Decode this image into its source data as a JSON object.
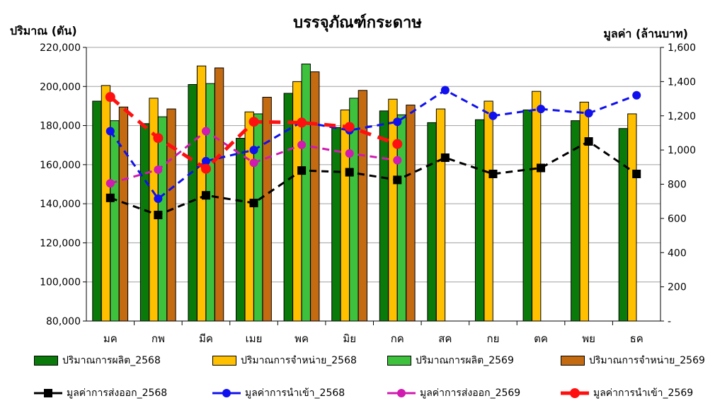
{
  "chart_data": {
    "type": "bar",
    "title": "บรรจุภัณฑ์กระดาษ",
    "ylabel": "ปริมาณ (ตัน)",
    "y2label": "มูลค่า (ล้านบาท)",
    "categories": [
      "มค",
      "กพ",
      "มีค",
      "เมย",
      "พค",
      "มิย",
      "กค",
      "สค",
      "กย",
      "ตค",
      "พย",
      "ธค"
    ],
    "ylim": [
      80000,
      220000
    ],
    "yticks": [
      "80,000",
      "100,000",
      "120,000",
      "140,000",
      "160,000",
      "180,000",
      "200,000",
      "220,000"
    ],
    "y2lim": [
      0,
      1600
    ],
    "y2ticks": [
      "-",
      "200",
      "400",
      "600",
      "800",
      "1,000",
      "1,200",
      "1,400",
      "1,600"
    ],
    "grid": true,
    "legend_position": "bottom",
    "bar_series": [
      {
        "name": "ปริมาณการผลิต_2568",
        "color": "#0a7a0a",
        "values": [
          192500,
          181000,
          201000,
          173500,
          196500,
          179000,
          187500,
          181500,
          183000,
          188000,
          182500,
          178500
        ]
      },
      {
        "name": "ปริมาณการจำหน่าย_2568",
        "color": "#ffc000",
        "values": [
          200500,
          194000,
          210500,
          187000,
          202500,
          188000,
          193500,
          188500,
          192500,
          197500,
          192000,
          186000
        ]
      },
      {
        "name": "ปริมาณการผลิต_2569",
        "color": "#3ec23e",
        "values": [
          182500,
          184500,
          201500,
          186000,
          211500,
          194000,
          185500,
          null,
          null,
          null,
          null,
          null
        ]
      },
      {
        "name": "ปริมาณการจำหน่าย_2569",
        "color": "#c46a10",
        "values": [
          189500,
          188500,
          209500,
          194500,
          207500,
          198000,
          190500,
          null,
          null,
          null,
          null,
          null
        ]
      }
    ],
    "line_series": [
      {
        "name": "มูลค่าการส่งออก_2568",
        "color": "#000000",
        "marker": "square",
        "values": [
          720,
          620,
          735,
          690,
          880,
          870,
          825,
          955,
          860,
          895,
          1050,
          860
        ]
      },
      {
        "name": "มูลค่าการนำเข้า_2568",
        "color": "#1010ee",
        "marker": "circle",
        "values": [
          1110,
          715,
          935,
          1000,
          1165,
          1115,
          1165,
          1350,
          1200,
          1240,
          1215,
          1320
        ]
      },
      {
        "name": "มูลค่าการส่งออก_2569",
        "color": "#d01ab0",
        "marker": "circle",
        "values": [
          805,
          885,
          1110,
          925,
          1030,
          980,
          940,
          null,
          null,
          null,
          null,
          null
        ]
      },
      {
        "name": "มูลค่าการนำเข้า_2569",
        "color": "#ff1010",
        "marker": "circle",
        "values": [
          1310,
          1070,
          890,
          1165,
          1160,
          1135,
          1035,
          null,
          null,
          null,
          null,
          null
        ]
      }
    ]
  }
}
